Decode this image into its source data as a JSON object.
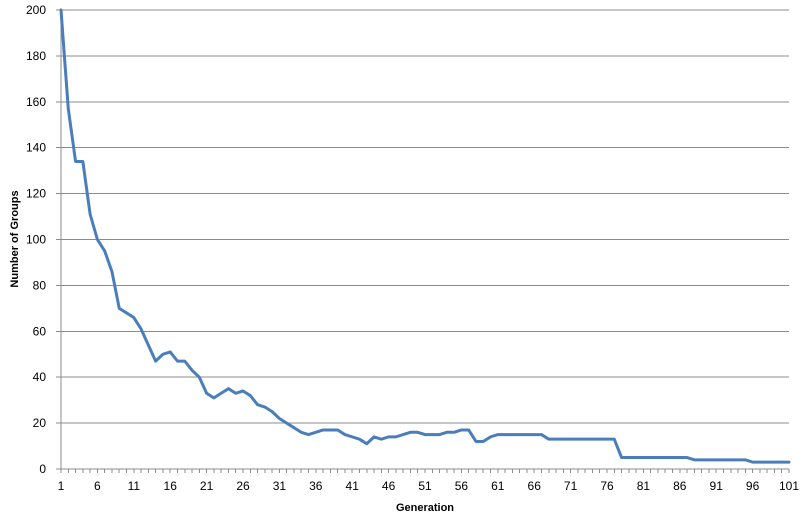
{
  "chart_data": {
    "type": "line",
    "title": "",
    "xlabel": "Generation",
    "ylabel": "Number of Groups",
    "xlim": [
      1,
      101
    ],
    "ylim": [
      0,
      200
    ],
    "y_ticks": [
      0,
      20,
      40,
      60,
      80,
      100,
      120,
      140,
      160,
      180,
      200
    ],
    "x_ticks": [
      1,
      6,
      11,
      16,
      21,
      26,
      31,
      36,
      41,
      46,
      51,
      56,
      61,
      66,
      71,
      76,
      81,
      86,
      91,
      96,
      101
    ],
    "grid": true,
    "legend": "none",
    "series": [
      {
        "color": "#4a7ebb",
        "x": [
          1,
          2,
          3,
          4,
          5,
          6,
          7,
          8,
          9,
          10,
          11,
          12,
          13,
          14,
          15,
          16,
          17,
          18,
          19,
          20,
          21,
          22,
          23,
          24,
          25,
          26,
          27,
          28,
          29,
          30,
          31,
          32,
          33,
          34,
          35,
          36,
          37,
          38,
          39,
          40,
          41,
          42,
          43,
          44,
          45,
          46,
          47,
          48,
          49,
          50,
          51,
          52,
          53,
          54,
          55,
          56,
          57,
          58,
          59,
          60,
          61,
          62,
          63,
          64,
          65,
          66,
          67,
          68,
          69,
          70,
          71,
          72,
          73,
          74,
          75,
          76,
          77,
          78,
          79,
          80,
          81,
          82,
          83,
          84,
          85,
          86,
          87,
          88,
          89,
          90,
          91,
          92,
          93,
          94,
          95,
          96,
          97,
          98,
          99,
          100,
          101
        ],
        "values": [
          200,
          157,
          134,
          134,
          111,
          100,
          95,
          86,
          70,
          68,
          66,
          61,
          54,
          47,
          50,
          51,
          47,
          47,
          43,
          40,
          33,
          31,
          33,
          35,
          33,
          34,
          32,
          28,
          27,
          25,
          22,
          20,
          18,
          16,
          15,
          16,
          17,
          17,
          17,
          15,
          14,
          13,
          11,
          14,
          13,
          14,
          14,
          15,
          16,
          16,
          15,
          15,
          15,
          16,
          16,
          17,
          17,
          12,
          12,
          14,
          15,
          15,
          15,
          15,
          15,
          15,
          15,
          13,
          13,
          13,
          13,
          13,
          13,
          13,
          13,
          13,
          13,
          5,
          5,
          5,
          5,
          5,
          5,
          5,
          5,
          5,
          5,
          4,
          4,
          4,
          4,
          4,
          4,
          4,
          4,
          3,
          3,
          3,
          3,
          3,
          3
        ]
      }
    ]
  }
}
